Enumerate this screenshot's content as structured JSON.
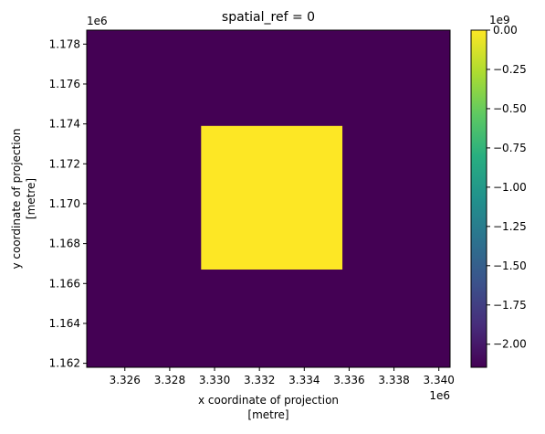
{
  "chart_data": {
    "type": "heatmap",
    "title": "spatial_ref = 0",
    "xlabel_line1": "x coordinate of projection",
    "xlabel_line2": "[metre]",
    "ylabel_line1": "y coordinate of projection",
    "ylabel_line2": "[metre]",
    "x_offset_label": "1e6",
    "y_offset_label": "1e6",
    "colorbar_offset_label": "1e9",
    "xlim": [
      3.3243,
      3.3405
    ],
    "ylim": [
      1.1618,
      1.1787
    ],
    "x_ticks": [
      3.326,
      3.328,
      3.33,
      3.332,
      3.334,
      3.336,
      3.338,
      3.34
    ],
    "x_tick_labels": [
      "3.326",
      "3.328",
      "3.330",
      "3.332",
      "3.334",
      "3.336",
      "3.338",
      "3.340"
    ],
    "y_ticks": [
      1.162,
      1.164,
      1.166,
      1.168,
      1.17,
      1.172,
      1.174,
      1.176,
      1.178
    ],
    "y_tick_labels": [
      "1.162",
      "1.164",
      "1.166",
      "1.168",
      "1.170",
      "1.172",
      "1.174",
      "1.176",
      "1.178"
    ],
    "regions": [
      {
        "x_range": [
          3.3243,
          3.3405
        ],
        "y_range": [
          1.1618,
          1.1787
        ],
        "value": -2.147
      },
      {
        "x_range": [
          3.3294,
          3.3357
        ],
        "y_range": [
          1.1667,
          1.1739
        ],
        "value": 0.0
      }
    ],
    "colorbar": {
      "colormap": "viridis",
      "range": [
        -2.147,
        0.0
      ],
      "ticks": [
        0.0,
        -0.25,
        -0.5,
        -0.75,
        -1.0,
        -1.25,
        -1.5,
        -1.75,
        -2.0
      ],
      "tick_labels": [
        "0.00",
        "−0.25",
        "−0.50",
        "−0.75",
        "−1.00",
        "−1.25",
        "−1.50",
        "−1.75",
        "−2.00"
      ]
    },
    "grid": false
  }
}
